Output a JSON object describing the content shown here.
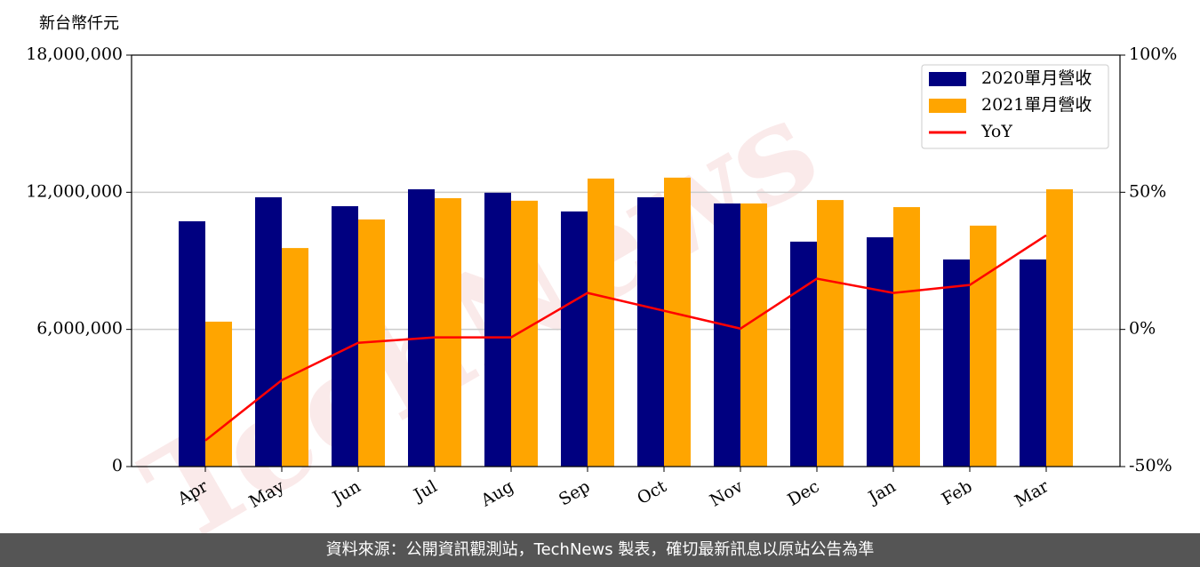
{
  "chart_data": {
    "type": "bar",
    "y_label": "新台幣仟元",
    "watermark": "TechNews",
    "categories": [
      "Apr",
      "May",
      "Jun",
      "Jul",
      "Aug",
      "Sep",
      "Oct",
      "Nov",
      "Dec",
      "Jan",
      "Feb",
      "Mar"
    ],
    "series": [
      {
        "name": "2020單月營收",
        "color": "#000080",
        "values": [
          10730000,
          11780000,
          11390000,
          12130000,
          11980000,
          11160000,
          11780000,
          11510000,
          9840000,
          10030000,
          9060000,
          9060000
        ]
      },
      {
        "name": "2021單月營收",
        "color": "#ffa500",
        "values": [
          6340000,
          9560000,
          10810000,
          11740000,
          11630000,
          12600000,
          12640000,
          11510000,
          11660000,
          11350000,
          10540000,
          12130000
        ]
      },
      {
        "name": "YoY",
        "type": "line",
        "axis": "y2",
        "color": "#ff0000",
        "values": [
          -40.5,
          -18.5,
          -4.9,
          -2.9,
          -2.9,
          13.3,
          6.8,
          0.3,
          18.5,
          13.3,
          16.2,
          34.3
        ]
      }
    ],
    "ylim": [
      0,
      18000000
    ],
    "yticks": [
      0,
      {
        "value": 6000000,
        "label": "6,000,000"
      },
      {
        "value": 12000000,
        "label": "12,000,000"
      },
      {
        "value": 18000000,
        "label": "18,000,000"
      }
    ],
    "y2lim": [
      -50,
      100
    ],
    "y2ticks": [
      {
        "value": -50,
        "label": "-50%"
      },
      {
        "value": 0,
        "label": "0%"
      },
      {
        "value": 50,
        "label": "50%"
      },
      {
        "value": 100,
        "label": "100%"
      }
    ],
    "grid": true,
    "legend": "upper right"
  },
  "footer": "資料來源：公開資訊觀測站，TechNews 製表，確切最新訊息以原站公告為準"
}
